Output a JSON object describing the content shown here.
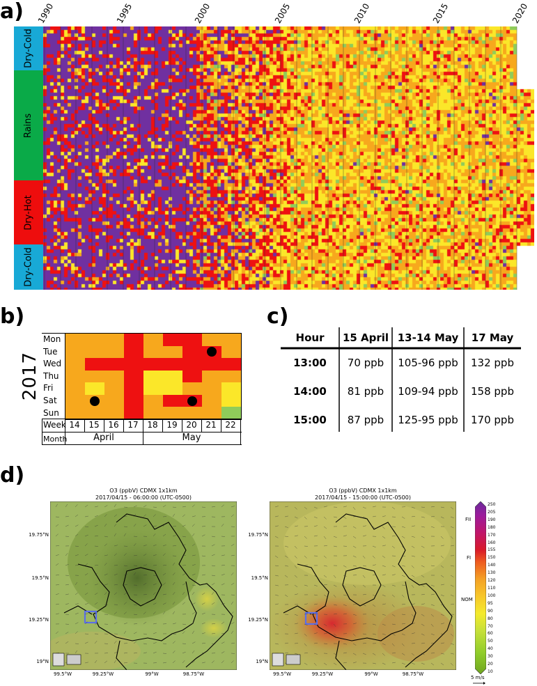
{
  "panels": {
    "a": "a)",
    "b": "b)",
    "c": "c)",
    "d": "d)"
  },
  "panel_a": {
    "year_ticks": [
      "1990",
      "1995",
      "2000",
      "2005",
      "2010",
      "2015",
      "2020"
    ],
    "seasons": [
      {
        "label": "Dry-Cold",
        "color": "#18a9d6"
      },
      {
        "label": "Rains",
        "color": "#0aaa48"
      },
      {
        "label": "Dry-Hot",
        "color": "#ee0d0d"
      },
      {
        "label": "Dry-Cold",
        "color": "#18a9d6"
      }
    ],
    "colors": {
      "very_bad": "#7030a0",
      "bad": "#ee1111",
      "regular": "#f7a81d",
      "good": "#fbe729",
      "very_good": "#8fcc5a"
    }
  },
  "panel_b": {
    "year": "2017",
    "days": [
      "Mon",
      "Tue",
      "Wed",
      "Thu",
      "Fri",
      "Sat",
      "Sun"
    ],
    "week_label": "Week",
    "month_label": "Month",
    "weeks": [
      "14",
      "15",
      "16",
      "17",
      "18",
      "19",
      "20",
      "21",
      "22"
    ],
    "months": [
      "April",
      "May"
    ]
  },
  "panel_c": {
    "headers": [
      "Hour",
      "15 April",
      "13-14 May",
      "17 May"
    ],
    "rows": [
      [
        "13:00",
        "70 ppb",
        "105-96 ppb",
        "132 ppb"
      ],
      [
        "14:00",
        "81 ppb",
        "109-94 ppb",
        "158 ppb"
      ],
      [
        "15:00",
        "87 ppb",
        "125-95 ppb",
        "170 ppb"
      ]
    ]
  },
  "panel_d": {
    "maps": [
      {
        "title": "O3 (ppbV) CDMX 1x1km",
        "subtitle": "2017/04/15 - 06:00:00 (UTC-0500)"
      },
      {
        "title": "O3 (ppbV) CDMX 1x1km",
        "subtitle": "2017/04/15 - 15:00:00 (UTC-0500)"
      }
    ],
    "lat_ticks": [
      "19.75°N",
      "19.5°N",
      "19.25°N",
      "19°N"
    ],
    "lon_ticks": [
      "99.5°W",
      "99.25°W",
      "99°W",
      "98.75°W"
    ],
    "colorbar": {
      "ticks": [
        "250",
        "205",
        "190",
        "180",
        "170",
        "160",
        "155",
        "150",
        "140",
        "130",
        "120",
        "110",
        "100",
        "95",
        "90",
        "80",
        "70",
        "60",
        "50",
        "40",
        "30",
        "20",
        "10"
      ],
      "markers": [
        "FII",
        "FI",
        "NOM"
      ],
      "wind_label": "5 m/s"
    }
  },
  "chart_data": [
    {
      "type": "heatmap",
      "title": "",
      "x_label": "",
      "x_ticks": [
        "1990",
        "1995",
        "2000",
        "2005",
        "2010",
        "2015",
        "2020"
      ],
      "y_categories": [
        "Dry-Cold",
        "Rains",
        "Dry-Hot",
        "Dry-Cold"
      ],
      "color_classes": [
        "very_bad",
        "bad",
        "regular",
        "good",
        "very_good"
      ]
    },
    {
      "type": "heatmap",
      "title": "2017",
      "x": [
        "14",
        "15",
        "16",
        "17",
        "18",
        "19",
        "20",
        "21",
        "22"
      ],
      "y": [
        "Mon",
        "Tue",
        "Wed",
        "Thu",
        "Fri",
        "Sat",
        "Sun"
      ],
      "values": [
        [
          "regular",
          "regular",
          "regular",
          "bad",
          "regular",
          "bad",
          "bad",
          "regular",
          "regular"
        ],
        [
          "regular",
          "regular",
          "regular",
          "bad",
          "regular",
          "regular",
          "bad",
          "bad",
          "regular"
        ],
        [
          "regular",
          "bad",
          "bad",
          "bad",
          "bad",
          "bad",
          "bad",
          "bad",
          "bad"
        ],
        [
          "regular",
          "regular",
          "regular",
          "bad",
          "good",
          "good",
          "bad",
          "regular",
          "regular"
        ],
        [
          "regular",
          "good",
          "regular",
          "bad",
          "good",
          "good",
          "regular",
          "regular",
          "good"
        ],
        [
          "regular",
          "regular",
          "regular",
          "bad",
          "regular",
          "bad",
          "bad",
          "regular",
          "good"
        ],
        [
          "regular",
          "regular",
          "regular",
          "bad",
          "regular",
          "regular",
          "regular",
          "regular",
          "very_good"
        ]
      ],
      "markers": [
        {
          "week": "15",
          "day": "Sat"
        },
        {
          "week": "20",
          "day": "Sat"
        },
        {
          "week": "21",
          "day": "Tue"
        }
      ]
    },
    {
      "type": "table",
      "columns": [
        "Hour",
        "15 April",
        "13-14 May",
        "17 May"
      ],
      "rows": [
        [
          "13:00",
          "70 ppb",
          "105-96 ppb",
          "132 ppb"
        ],
        [
          "14:00",
          "81 ppb",
          "109-94 ppb",
          "158 ppb"
        ],
        [
          "15:00",
          "87 ppb",
          "125-95 ppb",
          "170 ppb"
        ]
      ]
    }
  ]
}
